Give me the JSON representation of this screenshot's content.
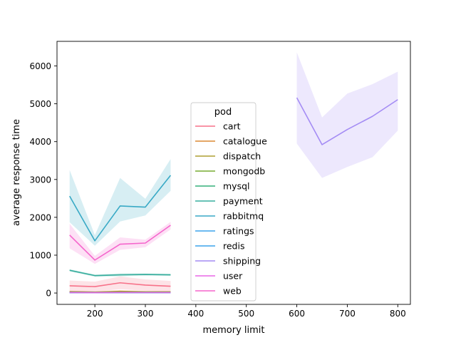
{
  "chart_data": {
    "type": "line",
    "xlabel": "memory limit",
    "ylabel": "average response time",
    "xlim": [
      125,
      825
    ],
    "ylim": [
      -300,
      6650
    ],
    "x_ticks": [
      200,
      300,
      400,
      500,
      600,
      700,
      800
    ],
    "y_ticks": [
      0,
      1000,
      2000,
      3000,
      4000,
      5000,
      6000
    ],
    "legend": {
      "title": "pod",
      "placement": "center"
    },
    "series": [
      {
        "name": "cart",
        "color": "#f77189",
        "x": [
          150,
          200,
          250,
          300,
          350
        ],
        "y": [
          190,
          170,
          270,
          210,
          180
        ],
        "lower": [
          40,
          40,
          100,
          60,
          40
        ],
        "upper": [
          330,
          300,
          440,
          360,
          320
        ]
      },
      {
        "name": "catalogue",
        "color": "#dc8932",
        "x": [
          150,
          200,
          250,
          300,
          350
        ],
        "y": [
          35,
          25,
          45,
          30,
          30
        ],
        "lower": [
          10,
          10,
          15,
          10,
          10
        ],
        "upper": [
          60,
          45,
          80,
          55,
          50
        ]
      },
      {
        "name": "dispatch",
        "color": "#ae9d31",
        "x": [
          150,
          200,
          250,
          300,
          350
        ],
        "y": [
          30,
          20,
          35,
          25,
          25
        ],
        "lower": [
          10,
          8,
          12,
          8,
          8
        ],
        "upper": [
          50,
          35,
          60,
          45,
          45
        ]
      },
      {
        "name": "mongodb",
        "color": "#77ab31",
        "x": [
          150,
          200,
          250,
          300,
          350
        ],
        "y": [
          15,
          12,
          18,
          14,
          14
        ],
        "lower": [
          5,
          4,
          6,
          5,
          5
        ],
        "upper": [
          25,
          20,
          30,
          24,
          24
        ]
      },
      {
        "name": "mysql",
        "color": "#33b07a",
        "x": [
          150,
          200,
          250,
          300,
          350
        ],
        "y": [
          20,
          15,
          20,
          18,
          18
        ],
        "lower": [
          8,
          5,
          8,
          6,
          6
        ],
        "upper": [
          32,
          25,
          32,
          30,
          30
        ]
      },
      {
        "name": "payment",
        "color": "#36ad9d",
        "x": [
          150,
          200,
          250,
          300,
          350
        ],
        "y": [
          600,
          460,
          480,
          490,
          480
        ],
        "lower": [
          570,
          430,
          440,
          460,
          450
        ],
        "upper": [
          630,
          490,
          520,
          520,
          510
        ]
      },
      {
        "name": "rabbitmq",
        "color": "#38a9c5",
        "x": [
          150,
          200,
          250,
          300,
          350
        ],
        "y": [
          2560,
          1380,
          2300,
          2270,
          3110
        ],
        "lower": [
          1870,
          1250,
          1890,
          2050,
          2700
        ],
        "upper": [
          3250,
          1530,
          3040,
          2490,
          3540
        ]
      },
      {
        "name": "ratings",
        "color": "#3ba3ec",
        "x": [
          150,
          200,
          250,
          300,
          350
        ],
        "y": [
          10,
          8,
          10,
          9,
          9
        ],
        "lower": [
          4,
          3,
          4,
          4,
          4
        ],
        "upper": [
          16,
          13,
          16,
          14,
          14
        ]
      },
      {
        "name": "redis",
        "color": "#3ba3ec",
        "x": [
          150,
          200,
          250,
          300,
          350
        ],
        "y": [
          8,
          6,
          8,
          7,
          7
        ],
        "lower": [
          3,
          2,
          3,
          3,
          3
        ],
        "upper": [
          13,
          10,
          13,
          11,
          11
        ]
      },
      {
        "name": "shipping",
        "color": "#a48cf4",
        "x": [
          600,
          650,
          700,
          750,
          800
        ],
        "y": [
          5160,
          3920,
          4320,
          4670,
          5110
        ],
        "lower": [
          3950,
          3040,
          3330,
          3590,
          4290
        ],
        "upper": [
          6360,
          4640,
          5270,
          5520,
          5850
        ]
      },
      {
        "name": "user",
        "color": "#e866e6",
        "x": [
          150,
          200,
          250,
          300,
          350
        ],
        "y": [
          12,
          10,
          12,
          11,
          11
        ],
        "lower": [
          5,
          4,
          5,
          5,
          5
        ],
        "upper": [
          19,
          16,
          19,
          17,
          17
        ]
      },
      {
        "name": "web",
        "color": "#f565cc",
        "x": [
          150,
          200,
          250,
          300,
          350
        ],
        "y": [
          1530,
          870,
          1290,
          1320,
          1790
        ],
        "lower": [
          1180,
          770,
          1140,
          1210,
          1680
        ],
        "upper": [
          1830,
          980,
          1470,
          1410,
          1880
        ]
      }
    ]
  }
}
